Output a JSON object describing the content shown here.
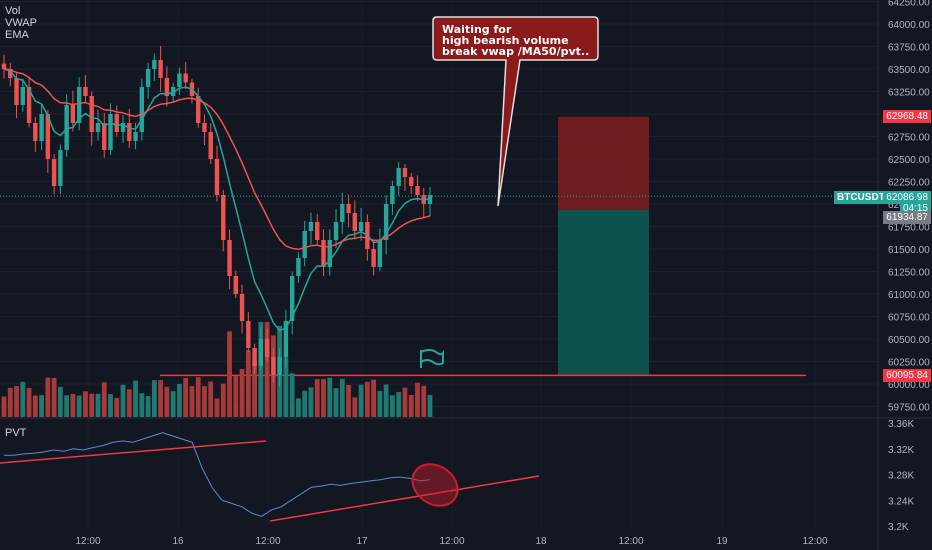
{
  "legend": [
    "Vol",
    "VWAP",
    "EMA"
  ],
  "pvt_label": "PVT",
  "callout": {
    "lines": [
      "Waiting for",
      "high bearish volume",
      "break vwap /MA50/pvt.."
    ],
    "bg": "#8b1a1a",
    "border": "#e0e0e0"
  },
  "ticker_label": "BTCUSDT",
  "price_tags": {
    "stop": {
      "text": "62968.48",
      "color": "#f23645"
    },
    "current": {
      "text": "62086.98",
      "sub": "04:15",
      "color": "#26a69a"
    },
    "entry": {
      "text": "61934.87",
      "color": "#787b86"
    },
    "target": {
      "text": "60095.84",
      "color": "#f23645"
    }
  },
  "colors": {
    "up": "#26a69a",
    "down": "#ef5350",
    "vwap": "#26a69a",
    "ema": "#ef5350",
    "vol_up": "#1f7a72",
    "vol_down": "#a83a3a",
    "line_pink": "#f23645",
    "pvt_line": "#5b8bd1",
    "risk": "#7a1e1e",
    "reward": "#0d5550"
  },
  "chart_data": {
    "type": "candlestick",
    "symbol": "BTCUSDT",
    "price_axis": {
      "ticks": [
        64250,
        64000,
        63750,
        63500,
        63250,
        63000,
        62750,
        62500,
        62250,
        62000,
        61750,
        61500,
        61250,
        61000,
        60750,
        60500,
        60250,
        60000,
        59750
      ],
      "labels": [
        "64250.00",
        "64000.00",
        "63750.00",
        "63500.00",
        "63250.00",
        "63000.00",
        "62750.00",
        "62500.00",
        "62250.00",
        "62000.00",
        "61750.00",
        "61500.00",
        "61250.00",
        "61000.00",
        "60750.00",
        "60500.00",
        "60250.00",
        "60000.00",
        "59750.00"
      ]
    },
    "pvt_axis": {
      "ticks": [
        3.36,
        3.32,
        3.28,
        3.24,
        3.2
      ],
      "labels": [
        "3.36K",
        "3.32K",
        "3.28K",
        "3.24K",
        "3.2K"
      ]
    },
    "time_axis": {
      "labels": [
        "12:00",
        "16",
        "12:00",
        "17",
        "12:00",
        "18",
        "12:00",
        "19",
        "12:00"
      ]
    },
    "levels": {
      "stop": 62968.48,
      "current": 62086.98,
      "entry": 61934.87,
      "target": 60095.84
    },
    "series": [
      {
        "name": "BTCUSDT",
        "kind": "candles",
        "close_path": [
          63500,
          63400,
          63100,
          63300,
          62900,
          62700,
          63000,
          62500,
          62200,
          62600,
          63100,
          62900,
          63300,
          63200,
          62800,
          62900,
          62600,
          63000,
          62800,
          62900,
          62700,
          62800,
          63300,
          63500,
          63600,
          63400,
          63200,
          63300,
          63450,
          63350,
          63200,
          62900,
          62800,
          62500,
          62100,
          61600,
          61200,
          61000,
          60700,
          60400,
          60200,
          60500,
          60300,
          60100,
          60300,
          60700,
          61200,
          61400,
          61700,
          61800,
          61600,
          61300,
          61600,
          61800,
          62000,
          61900,
          61700,
          61800,
          61500,
          61300,
          61600,
          62000,
          62200,
          62400,
          62300,
          62200,
          62100,
          62000,
          62100
        ]
      },
      {
        "name": "VWAP"
      },
      {
        "name": "EMA"
      },
      {
        "name": "PVT",
        "values": [
          3.31,
          3.31,
          3.312,
          3.313,
          3.315,
          3.318,
          3.316,
          3.32,
          3.318,
          3.322,
          3.325,
          3.33,
          3.332,
          3.33,
          3.335,
          3.34,
          3.345,
          3.34,
          3.335,
          3.33,
          3.29,
          3.26,
          3.24,
          3.235,
          3.23,
          3.22,
          3.215,
          3.225,
          3.23,
          3.24,
          3.25,
          3.26,
          3.262,
          3.265,
          3.263,
          3.266,
          3.268,
          3.27,
          3.272,
          3.275,
          3.276,
          3.274,
          3.27,
          3.272
        ]
      }
    ]
  }
}
